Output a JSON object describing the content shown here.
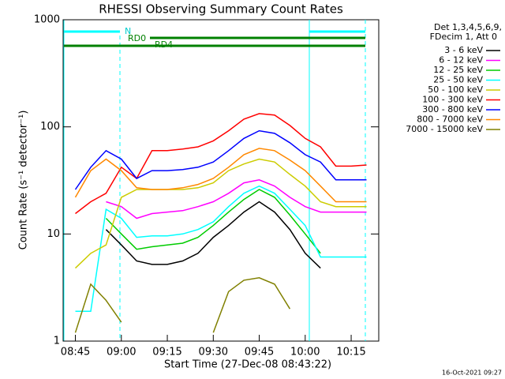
{
  "chart_data": {
    "type": "line",
    "title": "RHESSI Observing Summary Count Rates",
    "x_label": "Start Time (27-Dec-08 08:43:22)",
    "y_label": "Count Rate (s⁻¹ detector⁻¹)",
    "legend_header": [
      "Det 1,3,4,5,6,9,",
      "FDecim 1, Att 0"
    ],
    "footer": "16-Oct-2021 09:27",
    "annotations": [
      "N",
      "RD0",
      "RD4"
    ],
    "log_y": true,
    "xlim": [
      "08:41",
      "10:24"
    ],
    "xticks": [
      "08:45",
      "09:00",
      "09:15",
      "09:30",
      "09:45",
      "10:00",
      "10:15"
    ],
    "ylim": [
      1,
      1000
    ],
    "yticks": [
      1,
      10,
      100,
      1000
    ],
    "x": [
      "08:45",
      "08:50",
      "08:55",
      "09:00",
      "09:05",
      "09:10",
      "09:15",
      "09:20",
      "09:25",
      "09:30",
      "09:35",
      "09:40",
      "09:45",
      "09:50",
      "09:55",
      "10:00",
      "10:05",
      "10:10",
      "10:15",
      "10:20"
    ],
    "series": [
      {
        "name": "3 - 6 keV",
        "color": "#000000",
        "values": [
          null,
          null,
          11,
          7.9,
          5.6,
          5.2,
          5.2,
          5.6,
          6.6,
          9.3,
          12,
          16,
          20,
          16,
          11,
          6.6,
          4.8,
          null,
          null,
          null
        ]
      },
      {
        "name": "6 - 12 keV",
        "color": "#ff00ff",
        "values": [
          null,
          null,
          20,
          18,
          14,
          15.5,
          16,
          16.5,
          18,
          20,
          24,
          30,
          32,
          28,
          22,
          18,
          16,
          16,
          16,
          16
        ]
      },
      {
        "name": "12 - 25 keV",
        "color": "#00cc00",
        "values": [
          null,
          null,
          14,
          10,
          7.2,
          7.6,
          7.9,
          8.2,
          9.3,
          12,
          16,
          21,
          26,
          22,
          15,
          10,
          6.6,
          null,
          null,
          null
        ]
      },
      {
        "name": "25 - 50 keV",
        "color": "#00ffff",
        "values": [
          1.9,
          1.9,
          17,
          14,
          9.3,
          9.6,
          9.6,
          10,
          11,
          13,
          18,
          24,
          28,
          24,
          17,
          12,
          6.1,
          6.1,
          6.1,
          6.1
        ]
      },
      {
        "name": "50 - 100 keV",
        "color": "#cccc00",
        "values": [
          4.8,
          6.6,
          7.9,
          22,
          26,
          26,
          26,
          26,
          27,
          30,
          39,
          45,
          50,
          47,
          36,
          28,
          20,
          18,
          18,
          18
        ]
      },
      {
        "name": "100 - 300 keV",
        "color": "#ff0000",
        "values": [
          15.5,
          20,
          24,
          42,
          33,
          60,
          60,
          62,
          65,
          74,
          92,
          118,
          133,
          129,
          103,
          78,
          65,
          43,
          43,
          44
        ]
      },
      {
        "name": "300 - 800 keV",
        "color": "#0000ff",
        "values": [
          26,
          42,
          60,
          50,
          33,
          39,
          39,
          40,
          42,
          47,
          60,
          78,
          92,
          87,
          71,
          55,
          47,
          32,
          32,
          32
        ]
      },
      {
        "name": "800 - 7000 keV",
        "color": "#ff8800",
        "values": [
          22,
          39,
          50,
          39,
          27,
          26,
          26,
          27,
          29,
          33,
          42,
          55,
          63,
          60,
          49,
          39,
          28,
          20,
          20,
          20
        ]
      },
      {
        "name": "7000 - 15000 keV",
        "color": "#808000",
        "values": [
          1.2,
          3.4,
          2.4,
          1.5,
          null,
          null,
          null,
          null,
          null,
          1.2,
          2.9,
          3.7,
          3.9,
          3.4,
          2.0,
          null,
          null,
          null,
          null,
          null
        ]
      }
    ]
  }
}
